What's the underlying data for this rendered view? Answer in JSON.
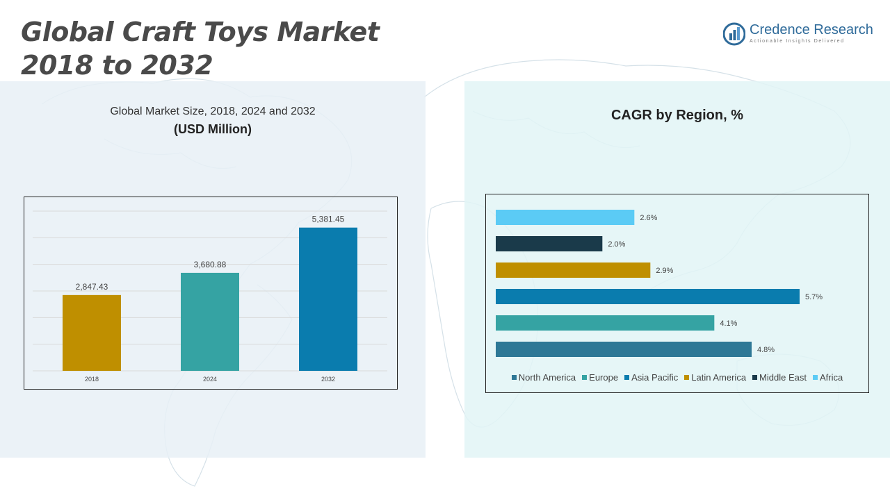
{
  "header": {
    "title_line1": "Global Craft Toys Market",
    "title_line2": "2018 to 2032"
  },
  "logo": {
    "name": "Credence Research",
    "tagline": "Actionable Insights Delivered",
    "icon": "bar-chart-logo-icon"
  },
  "left_panel": {
    "subtitle": "Global Market Size, 2018, 2024 and 2032",
    "unit": "(USD Million)"
  },
  "right_panel": {
    "title": "CAGR by Region, %"
  },
  "chart_data": [
    {
      "type": "bar",
      "categories": [
        "2018",
        "2024",
        "2032"
      ],
      "values": [
        2847.43,
        3680.88,
        5381.45
      ],
      "value_labels": [
        "2,847.43",
        "3,680.88",
        "5,381.45"
      ],
      "colors": [
        "#bf8f00",
        "#35a3a3",
        "#0a7cae"
      ],
      "title": "Global Market Size, 2018, 2024 and 2032",
      "ylabel": "(USD Million)",
      "ylim": [
        0,
        6000
      ],
      "grid": true
    },
    {
      "type": "bar",
      "orientation": "horizontal",
      "categories": [
        "Africa",
        "Middle East",
        "Latin America",
        "Asia Pacific",
        "Europe",
        "North America"
      ],
      "values": [
        2.6,
        2.0,
        2.9,
        5.7,
        4.1,
        4.8
      ],
      "value_labels": [
        "2.6%",
        "2.0%",
        "2.9%",
        "5.7%",
        "4.1%",
        "4.8%"
      ],
      "colors": [
        "#5bcbf5",
        "#1a3a4a",
        "#bf8f00",
        "#0a7cae",
        "#35a3a3",
        "#2e7896"
      ],
      "title": "CAGR by Region, %",
      "xlim": [
        0,
        6.0
      ],
      "legend": {
        "position": "bottom",
        "entries": [
          "North America",
          "Europe",
          "Asia Pacific",
          "Latin America",
          "Middle East",
          "Africa"
        ],
        "colors": [
          "#2e7896",
          "#35a3a3",
          "#0a7cae",
          "#bf8f00",
          "#1a3a4a",
          "#5bcbf5"
        ]
      }
    }
  ]
}
